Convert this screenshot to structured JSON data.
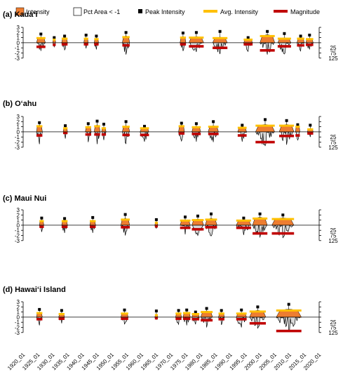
{
  "legend": {
    "intensity": "Intensity",
    "pct_area": "Pct Area < -1",
    "peak": "Peak Intensity",
    "avg": "Avg. Intensity",
    "magnitude": "Magnitude"
  },
  "colors": {
    "intensity": "#ED7D31",
    "pct_area": "#D9D9D9",
    "peak": "#000000",
    "avg": "#FFC000",
    "magnitude": "#C00000"
  },
  "x_ticks": [
    "1920_01",
    "1925_01",
    "1930_01",
    "1935_01",
    "1940_01",
    "1945_01",
    "1950_01",
    "1955_01",
    "1960_01",
    "1965_01",
    "1970_01",
    "1975_01",
    "1980_01",
    "1985_01",
    "1990_01",
    "1995_01",
    "2000_01",
    "2005_01",
    "2010_01",
    "2015_01",
    "2020_01"
  ],
  "left_ticks": [
    "3",
    "2",
    "1",
    "0",
    "-1",
    "-2",
    "-3"
  ],
  "right_ticks": [
    "25",
    "75",
    "125"
  ],
  "chart_data": [
    {
      "type": "area",
      "title": "(a) Kaua‘i",
      "ylim": [
        -3,
        3
      ],
      "xlim": [
        1920,
        2020
      ],
      "events": [
        {
          "start": 1924.5,
          "end": 1927.5,
          "avg": 0.9,
          "peak": 1.7,
          "mag": -0.8,
          "min": -1.6
        },
        {
          "start": 1930.0,
          "end": 1931.0,
          "avg": 0.6,
          "peak": 1.0,
          "mag": -0.4,
          "min": -0.8
        },
        {
          "start": 1933.0,
          "end": 1935.0,
          "avg": 0.8,
          "peak": 1.3,
          "mag": -0.3,
          "min": -1.4
        },
        {
          "start": 1940.5,
          "end": 1942.0,
          "avg": 0.8,
          "peak": 1.5,
          "mag": -0.3,
          "min": -1.1
        },
        {
          "start": 1944.0,
          "end": 1945.5,
          "avg": 0.7,
          "peak": 1.3,
          "mag": -0.3,
          "min": -1.3
        },
        {
          "start": 1953.5,
          "end": 1956.0,
          "avg": 1.1,
          "peak": 2.0,
          "mag": -0.5,
          "min": -2.3
        },
        {
          "start": 1973.0,
          "end": 1975.0,
          "avg": 1.0,
          "peak": 1.9,
          "mag": -0.3,
          "min": -1.6
        },
        {
          "start": 1976.0,
          "end": 1981.0,
          "avg": 1.0,
          "peak": 2.0,
          "mag": -0.7,
          "min": -1.8
        },
        {
          "start": 1984.0,
          "end": 1989.0,
          "avg": 0.9,
          "peak": 2.2,
          "mag": -1.0,
          "min": -2.2
        },
        {
          "start": 1994.5,
          "end": 1997.5,
          "avg": 0.6,
          "peak": 1.0,
          "mag": -0.3,
          "min": -1.7
        },
        {
          "start": 2000.0,
          "end": 2005.0,
          "avg": 1.3,
          "peak": 2.2,
          "mag": -1.5,
          "min": -2.3
        },
        {
          "start": 2006.0,
          "end": 2010.5,
          "avg": 0.8,
          "peak": 1.8,
          "mag": -0.7,
          "min": -2.2
        },
        {
          "start": 2012.5,
          "end": 2015.0,
          "avg": 0.8,
          "peak": 1.3,
          "mag": -0.5,
          "min": -1.6
        },
        {
          "start": 2015.5,
          "end": 2018.0,
          "avg": 0.7,
          "peak": 1.5,
          "mag": -0.4,
          "min": -1.3
        }
      ]
    },
    {
      "type": "area",
      "title": "(b) O‘ahu",
      "ylim": [
        -3,
        3
      ],
      "xlim": [
        1920,
        2020
      ],
      "events": [
        {
          "start": 1924.5,
          "end": 1926.5,
          "avg": 1.1,
          "peak": 1.8,
          "mag": -0.7,
          "min": -2.4
        },
        {
          "start": 1933.5,
          "end": 1935.0,
          "avg": 0.7,
          "peak": 1.2,
          "mag": -0.2,
          "min": -1.3
        },
        {
          "start": 1941.0,
          "end": 1943.0,
          "avg": 0.9,
          "peak": 1.6,
          "mag": -0.5,
          "min": -2.0
        },
        {
          "start": 1944.0,
          "end": 1946.0,
          "avg": 1.1,
          "peak": 2.1,
          "mag": -0.5,
          "min": -2.4
        },
        {
          "start": 1946.5,
          "end": 1948.0,
          "avg": 0.7,
          "peak": 1.5,
          "mag": -0.5,
          "min": -1.6
        },
        {
          "start": 1953.5,
          "end": 1956.0,
          "avg": 1.0,
          "peak": 2.0,
          "mag": -0.6,
          "min": -2.3
        },
        {
          "start": 1959.5,
          "end": 1962.5,
          "avg": 0.7,
          "peak": 1.1,
          "mag": -0.6,
          "min": -1.9
        },
        {
          "start": 1972.5,
          "end": 1974.5,
          "avg": 1.1,
          "peak": 1.7,
          "mag": -0.3,
          "min": -1.8
        },
        {
          "start": 1977.0,
          "end": 1980.0,
          "avg": 0.9,
          "peak": 1.6,
          "mag": -0.4,
          "min": -1.9
        },
        {
          "start": 1982.5,
          "end": 1986.0,
          "avg": 1.0,
          "peak": 2.0,
          "mag": -0.4,
          "min": -2.0
        },
        {
          "start": 1992.5,
          "end": 1995.5,
          "avg": 0.8,
          "peak": 1.3,
          "mag": -0.7,
          "min": -1.9
        },
        {
          "start": 1998.5,
          "end": 2005.0,
          "avg": 1.2,
          "peak": 2.4,
          "mag": -2.0,
          "min": -2.7
        },
        {
          "start": 2006.5,
          "end": 2011.5,
          "avg": 1.2,
          "peak": 2.2,
          "mag": -0.8,
          "min": -2.5
        },
        {
          "start": 2012.0,
          "end": 2013.5,
          "avg": 1.0,
          "peak": 1.4,
          "mag": -0.7,
          "min": -1.6
        },
        {
          "start": 2016.0,
          "end": 2018.0,
          "avg": 0.5,
          "peak": 1.3,
          "mag": -0.3,
          "min": -1.0
        }
      ]
    },
    {
      "type": "area",
      "title": "(c) Maui Nui",
      "ylim": [
        -3,
        3
      ],
      "xlim": [
        1920,
        2020
      ],
      "events": [
        {
          "start": 1925.5,
          "end": 1927.0,
          "avg": 0.8,
          "peak": 1.4,
          "mag": -0.3,
          "min": -1.3
        },
        {
          "start": 1933.0,
          "end": 1935.0,
          "avg": 0.8,
          "peak": 1.3,
          "mag": -0.3,
          "min": -1.5
        },
        {
          "start": 1942.5,
          "end": 1944.5,
          "avg": 0.8,
          "peak": 1.5,
          "mag": -0.3,
          "min": -1.5
        },
        {
          "start": 1953.0,
          "end": 1956.0,
          "avg": 1.1,
          "peak": 2.1,
          "mag": -0.4,
          "min": -2.0
        },
        {
          "start": 1964.5,
          "end": 1965.5,
          "avg": 0.5,
          "peak": 1.1,
          "mag": -0.2,
          "min": -0.6
        },
        {
          "start": 1973.0,
          "end": 1976.5,
          "avg": 0.9,
          "peak": 1.6,
          "mag": -0.5,
          "min": -1.8
        },
        {
          "start": 1977.0,
          "end": 1981.0,
          "avg": 1.0,
          "peak": 1.8,
          "mag": -0.8,
          "min": -2.0
        },
        {
          "start": 1981.5,
          "end": 1985.5,
          "avg": 1.1,
          "peak": 2.2,
          "mag": -0.4,
          "min": -2.1
        },
        {
          "start": 1992.0,
          "end": 1997.0,
          "avg": 0.9,
          "peak": 1.4,
          "mag": -0.5,
          "min": -1.9
        },
        {
          "start": 1997.5,
          "end": 2002.5,
          "avg": 1.3,
          "peak": 2.2,
          "mag": -1.6,
          "min": -2.4
        },
        {
          "start": 2004.0,
          "end": 2011.5,
          "avg": 1.2,
          "peak": 2.0,
          "mag": -1.6,
          "min": -2.5
        }
      ]
    },
    {
      "type": "area",
      "title": "(d) Hawai‘i Island",
      "ylim": [
        -3,
        3
      ],
      "xlim": [
        1920,
        2020
      ],
      "events": [
        {
          "start": 1924.5,
          "end": 1926.5,
          "avg": 0.8,
          "peak": 1.5,
          "mag": -0.4,
          "min": -1.6
        },
        {
          "start": 1932.0,
          "end": 1934.0,
          "avg": 0.6,
          "peak": 1.3,
          "mag": -0.3,
          "min": -1.2
        },
        {
          "start": 1953.0,
          "end": 1955.5,
          "avg": 0.7,
          "peak": 1.4,
          "mag": -0.3,
          "min": -1.4
        },
        {
          "start": 1964.5,
          "end": 1965.5,
          "avg": 0.4,
          "peak": 1.2,
          "mag": -0.2,
          "min": -0.5
        },
        {
          "start": 1971.5,
          "end": 1973.5,
          "avg": 0.7,
          "peak": 1.3,
          "mag": -0.3,
          "min": -1.4
        },
        {
          "start": 1974.0,
          "end": 1976.5,
          "avg": 0.8,
          "peak": 1.4,
          "mag": -0.3,
          "min": -1.6
        },
        {
          "start": 1977.0,
          "end": 1979.5,
          "avg": 0.6,
          "peak": 1.0,
          "mag": -0.4,
          "min": -1.4
        },
        {
          "start": 1980.0,
          "end": 1984.0,
          "avg": 1.0,
          "peak": 1.7,
          "mag": -0.6,
          "min": -2.0
        },
        {
          "start": 1986.0,
          "end": 1988.0,
          "avg": 0.7,
          "peak": 1.3,
          "mag": -0.4,
          "min": -1.5
        },
        {
          "start": 1992.0,
          "end": 1995.5,
          "avg": 0.7,
          "peak": 1.4,
          "mag": -0.4,
          "min": -2.0
        },
        {
          "start": 1996.5,
          "end": 2002.0,
          "avg": 1.1,
          "peak": 2.0,
          "mag": -1.2,
          "min": -2.2
        },
        {
          "start": 2005.5,
          "end": 2014.0,
          "avg": 1.3,
          "peak": 2.5,
          "mag": -2.7,
          "min": -2.6
        }
      ]
    }
  ]
}
